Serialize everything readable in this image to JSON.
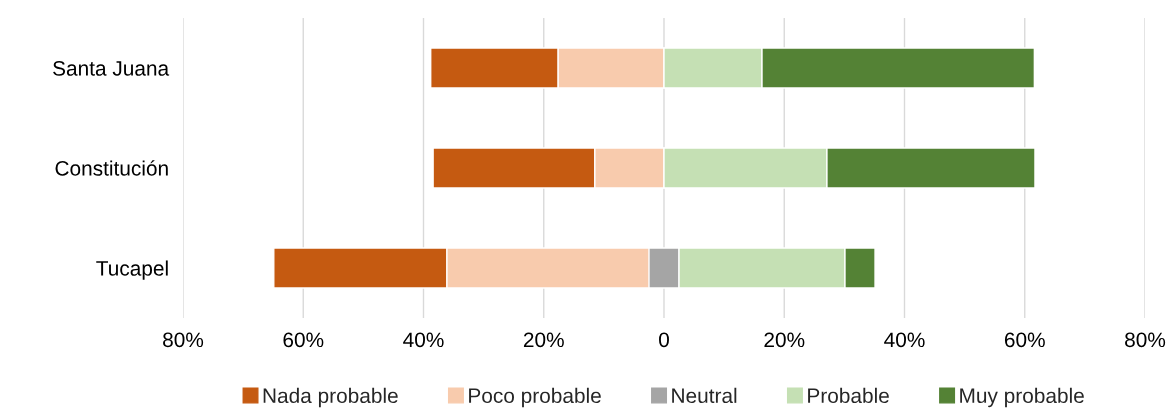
{
  "chart_data": {
    "type": "bar",
    "orientation": "horizontal",
    "categories": [
      "Santa Juana",
      "Constitución",
      "Tucapel"
    ],
    "series": [
      {
        "name": "Nada probable",
        "color": "#c55a11",
        "values": [
          21.2,
          26.9,
          28.8
        ],
        "base": [
          -38.8,
          -38.4,
          -64.9
        ]
      },
      {
        "name": "Poco probable",
        "color": "#f8cbad",
        "values": [
          17.6,
          11.5,
          33.8
        ],
        "base": [
          -17.6,
          -11.5,
          -36.1
        ]
      },
      {
        "name": "Neutral",
        "color": "#a5a5a5",
        "values": [
          null,
          null,
          5.0
        ],
        "base": [
          null,
          null,
          -2.5
        ]
      },
      {
        "name": "Probable",
        "color": "#c5e0b4",
        "values": [
          16.3,
          27.1,
          27.6
        ],
        "base": [
          0,
          0,
          2.5
        ]
      },
      {
        "name": "Muy probable",
        "color": "#548235",
        "values": [
          45.3,
          34.6,
          5.0
        ],
        "base": [
          16.3,
          27.1,
          30.1
        ]
      }
    ],
    "xlim": [
      -80,
      80
    ],
    "xticks": [
      {
        "value": -80,
        "label": "80%"
      },
      {
        "value": -60,
        "label": "60%"
      },
      {
        "value": -40,
        "label": "40%"
      },
      {
        "value": -20,
        "label": "20%"
      },
      0,
      {
        "value": 20,
        "label": "20%"
      },
      {
        "value": 40,
        "label": "40%"
      },
      {
        "value": 60,
        "label": "60%"
      },
      {
        "value": 80,
        "label": "80%"
      }
    ],
    "grid": "x",
    "legend": "bottom"
  }
}
